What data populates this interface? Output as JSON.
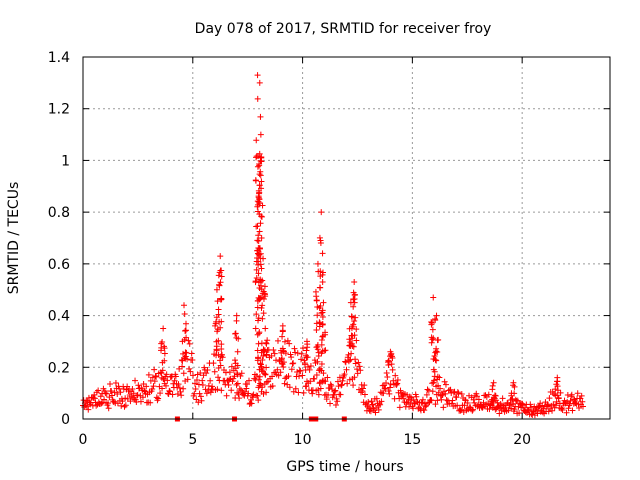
{
  "chart_data": {
    "type": "scatter",
    "title": "Day 078 of 2017, SRMTID for receiver froy",
    "xlabel": "GPS time / hours",
    "ylabel": "SRMTID / TECUs",
    "xlim": [
      0,
      24
    ],
    "ylim": [
      0,
      1.4
    ],
    "xticks": [
      0,
      5,
      10,
      15,
      20
    ],
    "yticks": [
      0,
      0.2,
      0.4,
      0.6,
      0.8,
      1,
      1.2,
      1.4
    ],
    "xtick_labels": [
      "0",
      "5",
      "10",
      "15",
      "20"
    ],
    "ytick_labels": [
      "0",
      "0.2",
      "0.4",
      "0.6",
      "0.8",
      "1",
      "1.2",
      "1.4"
    ],
    "grid": true,
    "marker": "plus",
    "marker_color": "#ff0000",
    "series": [
      {
        "name": "SRMTID",
        "baseline": [
          [
            0.0,
            0.05
          ],
          [
            0.5,
            0.07
          ],
          [
            1.0,
            0.08
          ],
          [
            1.5,
            0.09
          ],
          [
            2.0,
            0.1
          ],
          [
            2.5,
            0.1
          ],
          [
            3.0,
            0.11
          ],
          [
            3.5,
            0.14
          ],
          [
            3.9,
            0.16
          ],
          [
            4.3,
            0.12
          ],
          [
            4.8,
            0.22
          ],
          [
            5.2,
            0.12
          ],
          [
            5.8,
            0.16
          ],
          [
            6.2,
            0.2
          ],
          [
            6.6,
            0.12
          ],
          [
            7.0,
            0.16
          ],
          [
            7.5,
            0.1
          ],
          [
            8.0,
            0.12
          ],
          [
            8.5,
            0.2
          ],
          [
            9.0,
            0.22
          ],
          [
            9.5,
            0.2
          ],
          [
            10.0,
            0.18
          ],
          [
            10.5,
            0.16
          ],
          [
            11.0,
            0.15
          ],
          [
            11.5,
            0.07
          ],
          [
            12.0,
            0.2
          ],
          [
            12.5,
            0.22
          ],
          [
            13.0,
            0.04
          ],
          [
            13.5,
            0.05
          ],
          [
            14.0,
            0.18
          ],
          [
            14.5,
            0.08
          ],
          [
            15.0,
            0.06
          ],
          [
            15.5,
            0.05
          ],
          [
            16.0,
            0.12
          ],
          [
            16.5,
            0.1
          ],
          [
            17.0,
            0.07
          ],
          [
            17.5,
            0.06
          ],
          [
            18.0,
            0.06
          ],
          [
            18.5,
            0.07
          ],
          [
            19.0,
            0.05
          ],
          [
            19.5,
            0.05
          ],
          [
            20.0,
            0.04
          ],
          [
            20.5,
            0.03
          ],
          [
            21.0,
            0.04
          ],
          [
            21.5,
            0.08
          ],
          [
            22.0,
            0.07
          ],
          [
            22.8,
            0.06
          ]
        ],
        "spikes": [
          [
            3.65,
            0.35
          ],
          [
            4.6,
            0.44
          ],
          [
            6.1,
            0.5
          ],
          [
            6.25,
            0.63
          ],
          [
            7.0,
            0.4
          ],
          [
            7.95,
            1.33
          ],
          [
            8.05,
            1.3
          ],
          [
            8.1,
            1.1
          ],
          [
            8.2,
            0.62
          ],
          [
            8.3,
            0.35
          ],
          [
            9.1,
            0.36
          ],
          [
            10.2,
            0.3
          ],
          [
            10.7,
            0.6
          ],
          [
            10.85,
            0.8
          ],
          [
            10.95,
            0.45
          ],
          [
            12.2,
            0.45
          ],
          [
            12.35,
            0.53
          ],
          [
            14.0,
            0.26
          ],
          [
            15.95,
            0.47
          ],
          [
            16.1,
            0.4
          ],
          [
            18.7,
            0.14
          ],
          [
            19.6,
            0.14
          ],
          [
            21.6,
            0.16
          ]
        ],
        "zero_points": [
          4.3,
          6.9,
          10.4,
          10.6,
          11.9
        ]
      }
    ]
  }
}
